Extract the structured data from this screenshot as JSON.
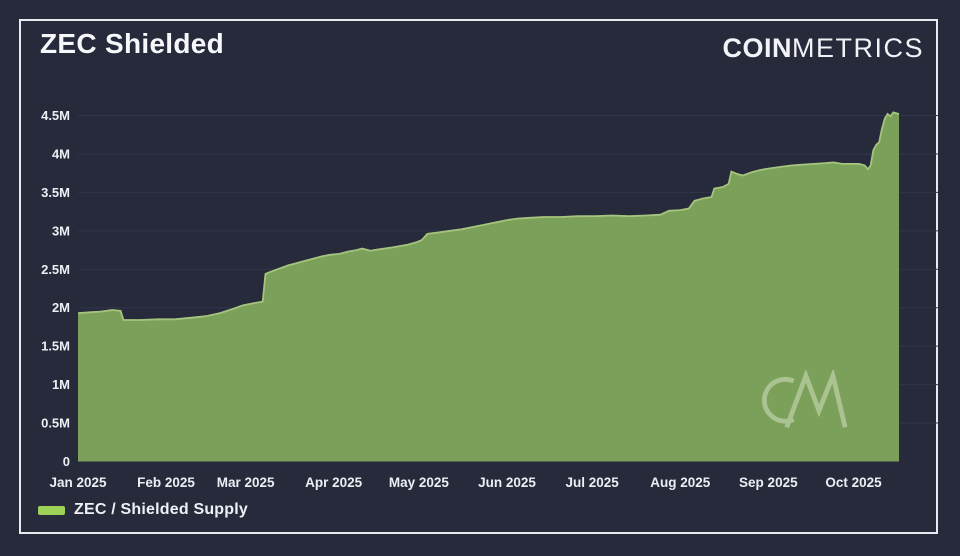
{
  "page": {
    "background": "#262a3b",
    "card_border_color": "#e9eaef"
  },
  "header": {
    "title": "ZEC Shielded",
    "logo_bold": "COIN",
    "logo_light": "METRICS"
  },
  "legend": {
    "label": "ZEC / Shielded Supply",
    "swatch_color": "#9ed158"
  },
  "watermark": "CM",
  "chart_data": {
    "type": "area",
    "title": "ZEC Shielded",
    "series_name": "ZEC / Shielded Supply",
    "fill_color": "#7aa05a",
    "line_color": "#a6c47e",
    "grid_color": "#31354a",
    "grid_on": true,
    "legend_position": "bottom-left",
    "ylabel": "",
    "xlabel": "",
    "ylim": [
      0,
      4.5
    ],
    "y_unit": "M",
    "yticks": [
      {
        "value": 0,
        "label": "0"
      },
      {
        "value": 0.5,
        "label": "0.5M"
      },
      {
        "value": 1,
        "label": "1M"
      },
      {
        "value": 1.5,
        "label": "1.5M"
      },
      {
        "value": 2,
        "label": "2M"
      },
      {
        "value": 2.5,
        "label": "2.5M"
      },
      {
        "value": 3,
        "label": "3M"
      },
      {
        "value": 3.5,
        "label": "3.5M"
      },
      {
        "value": 4,
        "label": "4M"
      },
      {
        "value": 4.5,
        "label": "4.5M"
      }
    ],
    "x_domain_days": [
      0,
      289
    ],
    "xticks": [
      {
        "day": 0,
        "label": "Jan 2025"
      },
      {
        "day": 31,
        "label": "Feb 2025"
      },
      {
        "day": 59,
        "label": "Mar 2025"
      },
      {
        "day": 90,
        "label": "Apr 2025"
      },
      {
        "day": 120,
        "label": "May 2025"
      },
      {
        "day": 151,
        "label": "Jun 2025"
      },
      {
        "day": 181,
        "label": "Jul 2025"
      },
      {
        "day": 212,
        "label": "Aug 2025"
      },
      {
        "day": 243,
        "label": "Sep 2025"
      },
      {
        "day": 273,
        "label": "Oct 2025"
      }
    ],
    "points": [
      [
        0,
        1.93
      ],
      [
        4,
        1.94
      ],
      [
        8,
        1.95
      ],
      [
        12,
        1.97
      ],
      [
        15,
        1.96
      ],
      [
        16,
        1.84
      ],
      [
        22,
        1.84
      ],
      [
        28,
        1.85
      ],
      [
        34,
        1.85
      ],
      [
        40,
        1.87
      ],
      [
        45,
        1.89
      ],
      [
        50,
        1.93
      ],
      [
        55,
        1.99
      ],
      [
        58,
        2.03
      ],
      [
        62,
        2.06
      ],
      [
        65,
        2.08
      ],
      [
        66,
        2.44
      ],
      [
        68,
        2.47
      ],
      [
        71,
        2.51
      ],
      [
        74,
        2.55
      ],
      [
        77,
        2.58
      ],
      [
        80,
        2.61
      ],
      [
        83,
        2.64
      ],
      [
        86,
        2.67
      ],
      [
        89,
        2.69
      ],
      [
        92,
        2.7
      ],
      [
        95,
        2.73
      ],
      [
        98,
        2.75
      ],
      [
        100,
        2.77
      ],
      [
        103,
        2.74
      ],
      [
        106,
        2.76
      ],
      [
        110,
        2.78
      ],
      [
        113,
        2.8
      ],
      [
        116,
        2.82
      ],
      [
        119,
        2.85
      ],
      [
        121,
        2.88
      ],
      [
        123,
        2.96
      ],
      [
        127,
        2.98
      ],
      [
        131,
        3.0
      ],
      [
        135,
        3.02
      ],
      [
        139,
        3.05
      ],
      [
        143,
        3.08
      ],
      [
        147,
        3.11
      ],
      [
        151,
        3.14
      ],
      [
        155,
        3.16
      ],
      [
        159,
        3.17
      ],
      [
        164,
        3.18
      ],
      [
        170,
        3.18
      ],
      [
        176,
        3.19
      ],
      [
        182,
        3.19
      ],
      [
        188,
        3.2
      ],
      [
        194,
        3.19
      ],
      [
        200,
        3.2
      ],
      [
        205,
        3.21
      ],
      [
        208,
        3.26
      ],
      [
        212,
        3.27
      ],
      [
        215,
        3.29
      ],
      [
        217,
        3.39
      ],
      [
        220,
        3.42
      ],
      [
        223,
        3.44
      ],
      [
        224,
        3.55
      ],
      [
        227,
        3.57
      ],
      [
        229,
        3.61
      ],
      [
        230,
        3.77
      ],
      [
        232,
        3.74
      ],
      [
        234,
        3.72
      ],
      [
        237,
        3.76
      ],
      [
        240,
        3.79
      ],
      [
        243,
        3.81
      ],
      [
        247,
        3.83
      ],
      [
        251,
        3.85
      ],
      [
        255,
        3.86
      ],
      [
        259,
        3.87
      ],
      [
        263,
        3.88
      ],
      [
        266,
        3.89
      ],
      [
        269,
        3.87
      ],
      [
        272,
        3.87
      ],
      [
        275,
        3.87
      ],
      [
        277,
        3.85
      ],
      [
        278,
        3.8
      ],
      [
        279,
        3.85
      ],
      [
        280,
        4.05
      ],
      [
        281,
        4.12
      ],
      [
        282,
        4.15
      ],
      [
        283,
        4.33
      ],
      [
        284,
        4.46
      ],
      [
        285,
        4.52
      ],
      [
        286,
        4.49
      ],
      [
        287,
        4.54
      ],
      [
        289,
        4.52
      ]
    ]
  }
}
